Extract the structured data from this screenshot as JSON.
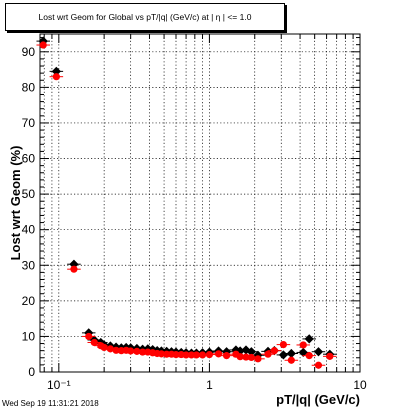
{
  "chart_data": {
    "type": "scatter",
    "title": "Lost wrt Geom for Global vs pT/|q| (GeV/c) at |  η | <= 1.0",
    "xlabel": "pT/|q| (GeV/c)",
    "ylabel": "Lost wrt Geom (%)",
    "x_scale": "log",
    "xlim": [
      0.075,
      10
    ],
    "ylim": [
      0,
      95
    ],
    "x_ticks": [
      {
        "value": 0.1,
        "label": "10⁻¹"
      },
      {
        "value": 1,
        "label": "1"
      },
      {
        "value": 10,
        "label": "10"
      }
    ],
    "y_ticks": [
      0,
      10,
      20,
      30,
      40,
      50,
      60,
      70,
      80,
      90
    ],
    "grid": true,
    "legend": "none",
    "series": [
      {
        "color": "#000000",
        "marker": "diamond",
        "points": [
          [
            0.0788,
            93.0
          ],
          [
            0.0963,
            84.5
          ],
          [
            0.126,
            30.3
          ],
          [
            0.158,
            11.0
          ],
          [
            0.172,
            9.0
          ],
          [
            0.19,
            8.3
          ],
          [
            0.2,
            7.6
          ],
          [
            0.22,
            7.3
          ],
          [
            0.24,
            7.0
          ],
          [
            0.26,
            6.8
          ],
          [
            0.28,
            6.9
          ],
          [
            0.3,
            6.8
          ],
          [
            0.33,
            6.6
          ],
          [
            0.36,
            6.4
          ],
          [
            0.39,
            6.5
          ],
          [
            0.42,
            6.3
          ],
          [
            0.45,
            6.0
          ],
          [
            0.48,
            5.9
          ],
          [
            0.52,
            5.8
          ],
          [
            0.56,
            5.7
          ],
          [
            0.6,
            5.6
          ],
          [
            0.65,
            5.5
          ],
          [
            0.7,
            5.4
          ],
          [
            0.76,
            5.3
          ],
          [
            0.82,
            5.3
          ],
          [
            0.9,
            5.4
          ],
          [
            1.0,
            5.6
          ],
          [
            1.15,
            5.9
          ],
          [
            1.3,
            5.7
          ],
          [
            1.5,
            6.2
          ],
          [
            1.6,
            5.9
          ],
          [
            1.75,
            6.2
          ],
          [
            1.9,
            5.7
          ],
          [
            2.1,
            4.7
          ],
          [
            2.45,
            5.8
          ],
          [
            2.7,
            6.0
          ],
          [
            3.1,
            4.8
          ],
          [
            3.5,
            5.2
          ],
          [
            4.2,
            5.5
          ],
          [
            4.6,
            9.3
          ],
          [
            5.3,
            5.7
          ],
          [
            6.3,
            5.0
          ]
        ]
      },
      {
        "color": "#ff0000",
        "marker": "circle",
        "points": [
          [
            0.0788,
            91.9
          ],
          [
            0.0963,
            83.0
          ],
          [
            0.126,
            28.9
          ],
          [
            0.158,
            10.0
          ],
          [
            0.172,
            8.3
          ],
          [
            0.19,
            7.4
          ],
          [
            0.2,
            6.9
          ],
          [
            0.22,
            6.5
          ],
          [
            0.24,
            6.1
          ],
          [
            0.26,
            6.0
          ],
          [
            0.28,
            6.1
          ],
          [
            0.3,
            5.9
          ],
          [
            0.33,
            5.8
          ],
          [
            0.36,
            5.6
          ],
          [
            0.39,
            5.6
          ],
          [
            0.42,
            5.4
          ],
          [
            0.45,
            5.2
          ],
          [
            0.48,
            5.1
          ],
          [
            0.52,
            5.0
          ],
          [
            0.56,
            5.0
          ],
          [
            0.6,
            4.9
          ],
          [
            0.65,
            4.9
          ],
          [
            0.7,
            4.8
          ],
          [
            0.76,
            4.8
          ],
          [
            0.82,
            4.8
          ],
          [
            0.9,
            4.8
          ],
          [
            1.0,
            4.9
          ],
          [
            1.15,
            5.1
          ],
          [
            1.3,
            4.6
          ],
          [
            1.5,
            5.0
          ],
          [
            1.6,
            4.3
          ],
          [
            1.75,
            4.2
          ],
          [
            1.9,
            4.1
          ],
          [
            2.1,
            3.7
          ],
          [
            2.45,
            5.0
          ],
          [
            2.7,
            6.0
          ],
          [
            3.1,
            7.7
          ],
          [
            3.5,
            3.3
          ],
          [
            4.2,
            7.6
          ],
          [
            4.6,
            4.6
          ],
          [
            5.3,
            1.9
          ],
          [
            6.3,
            4.4
          ]
        ]
      }
    ]
  },
  "footer": {
    "timestamp": "Wed Sep 19 11:31:21 2018"
  }
}
